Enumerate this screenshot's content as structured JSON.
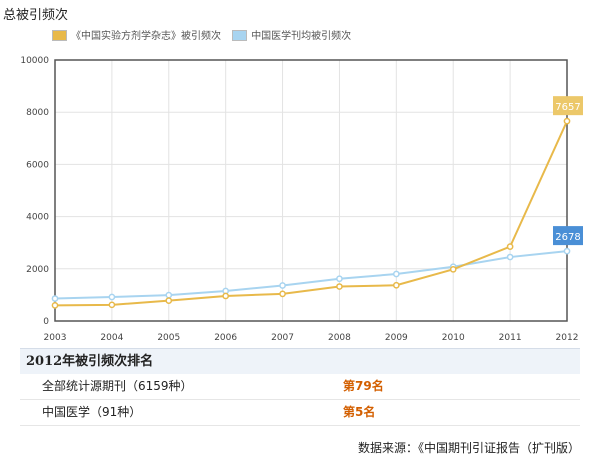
{
  "chart_data": {
    "type": "line",
    "title": "总被引频次",
    "categories": [
      "2003",
      "2004",
      "2005",
      "2006",
      "2007",
      "2008",
      "2009",
      "2010",
      "2011",
      "2012"
    ],
    "series": [
      {
        "name": "《中国实验方剂学杂志》被引频次",
        "color": "#e8b94a",
        "values": [
          600,
          620,
          780,
          960,
          1040,
          1320,
          1370,
          1980,
          2850,
          7657
        ]
      },
      {
        "name": "中国医学刊均被引频次",
        "color": "#a8d4f0",
        "values": [
          860,
          920,
          990,
          1150,
          1360,
          1620,
          1800,
          2080,
          2450,
          2678
        ]
      }
    ],
    "data_labels": [
      {
        "series": 0,
        "index": 9,
        "text": "7657",
        "bg": "#ecc86a"
      },
      {
        "series": 1,
        "index": 9,
        "text": "2678",
        "bg": "#4a8fd6"
      }
    ],
    "yticks": [
      "0",
      "2000",
      "4000",
      "6000",
      "8000",
      "10000"
    ],
    "ylim": [
      0,
      10000
    ],
    "grid": true,
    "legend_position": "top-left"
  },
  "ranking": {
    "title": "2012年被引频次排名",
    "rows": [
      {
        "label": "全部统计源期刊（6159种）",
        "value": "第79名"
      },
      {
        "label": "中国医学（91种）",
        "value": "第5名"
      }
    ]
  },
  "source_note": "数据来源：《中国期刊引证报告（扩刊版）"
}
